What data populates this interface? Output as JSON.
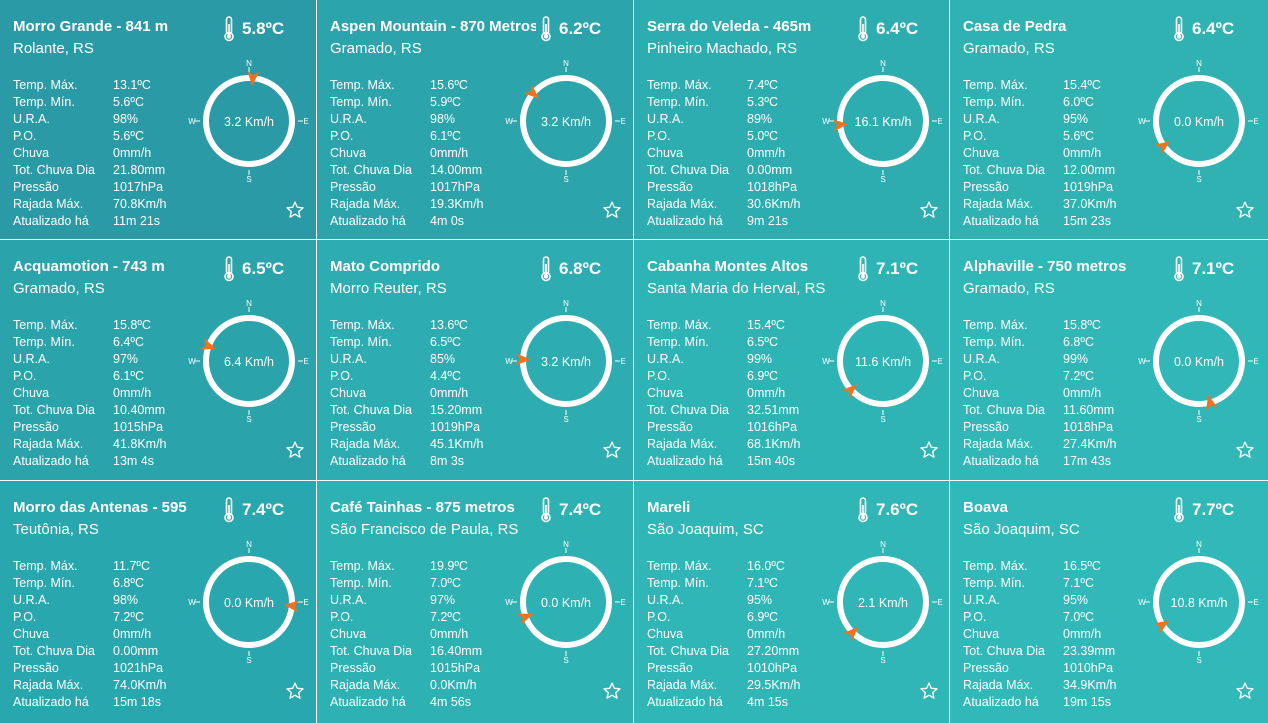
{
  "colors": {
    "gradient_top_row": [
      "#2a9aa6",
      "#2ba4ac",
      "#2eadb1",
      "#30b2b3"
    ],
    "gradient_mid_row": [
      "#2aa3ab",
      "#2dadb1",
      "#2fb4b5",
      "#31b7b7"
    ],
    "gradient_bot_row": [
      "#29a7ae",
      "#2db1b3",
      "#30b6b6",
      "#31b8b8"
    ],
    "arrow": "#f2711c"
  },
  "labels": {
    "temp_max": "Temp. Máx.",
    "temp_min": "Temp. Mín.",
    "ura": "U.R.A.",
    "po": "P.O.",
    "chuva": "Chuva",
    "tot_chuva": "Tot. Chuva Dia",
    "pressao": "Pressão",
    "rajada": "Rajada Máx.",
    "atualizado": "Atualizado há",
    "compass_n": "N",
    "compass_s": "S",
    "compass_e": "E",
    "compass_w": "W"
  },
  "stations": [
    {
      "name": "Morro Grande - 841 m",
      "city": "Rolante, RS",
      "temp": "5.8ºC",
      "temp_max": "13.1ºC",
      "temp_min": "5.6ºC",
      "ura": "98%",
      "po": "5.6ºC",
      "chuva": "0mm/h",
      "tot_chuva": "21.80mm",
      "pressao": "1017hPa",
      "rajada": "70.8Km/h",
      "atualizado": "11m 21s",
      "wind": "3.2 Km/h",
      "wind_deg": 5
    },
    {
      "name": "Aspen Mountain - 870 Metros",
      "city": "Gramado, RS",
      "temp": "6.2ºC",
      "temp_max": "15.6ºC",
      "temp_min": "5.9ºC",
      "ura": "98%",
      "po": "6.1ºC",
      "chuva": "0mm/h",
      "tot_chuva": "14.00mm",
      "pressao": "1017hPa",
      "rajada": "19.3Km/h",
      "atualizado": "4m 0s",
      "wind": "3.2 Km/h",
      "wind_deg": 310
    },
    {
      "name": "Serra do Veleda - 465m",
      "city": "Pinheiro Machado, RS",
      "temp": "6.4ºC",
      "temp_max": "7.4ºC",
      "temp_min": "5.3ºC",
      "ura": "89%",
      "po": "5.0ºC",
      "chuva": "0mm/h",
      "tot_chuva": "0.00mm",
      "pressao": "1018hPa",
      "rajada": "30.6Km/h",
      "atualizado": "9m 21s",
      "wind": "16.1 Km/h",
      "wind_deg": 265
    },
    {
      "name": "Casa de Pedra",
      "city": "Gramado, RS",
      "temp": "6.4ºC",
      "temp_max": "15.4ºC",
      "temp_min": "6.0ºC",
      "ura": "95%",
      "po": "5.6ºC",
      "chuva": "0mm/h",
      "tot_chuva": "12.00mm",
      "pressao": "1019hPa",
      "rajada": "37.0Km/h",
      "atualizado": "15m 23s",
      "wind": "0.0 Km/h",
      "wind_deg": 235
    },
    {
      "name": "Acquamotion - 743 m",
      "city": "Gramado, RS",
      "temp": "6.5ºC",
      "temp_max": "15.8ºC",
      "temp_min": "6.4ºC",
      "ura": "97%",
      "po": "6.1ºC",
      "chuva": "0mm/h",
      "tot_chuva": "10.40mm",
      "pressao": "1015hPa",
      "rajada": "41.8Km/h",
      "atualizado": "13m 4s",
      "wind": "6.4 Km/h",
      "wind_deg": 290
    },
    {
      "name": "Mato Comprido",
      "city": "Morro Reuter, RS",
      "temp": "6.8ºC",
      "temp_max": "13.6ºC",
      "temp_min": "6.5ºC",
      "ura": "85%",
      "po": "4.4ºC",
      "chuva": "0mm/h",
      "tot_chuva": "15.20mm",
      "pressao": "1019hPa",
      "rajada": "45.1Km/h",
      "atualizado": "8m 3s",
      "wind": "3.2 Km/h",
      "wind_deg": 272
    },
    {
      "name": "Cabanha Montes Altos",
      "city": "Santa Maria do Herval, RS",
      "temp": "7.1ºC",
      "temp_max": "15.4ºC",
      "temp_min": "6.5ºC",
      "ura": "99%",
      "po": "6.9ºC",
      "chuva": "0mm/h",
      "tot_chuva": "32.51mm",
      "pressao": "1016hPa",
      "rajada": "68.1Km/h",
      "atualizado": "15m 40s",
      "wind": "11.6 Km/h",
      "wind_deg": 228
    },
    {
      "name": "Alphaville - 750 metros",
      "city": "Gramado, RS",
      "temp": "7.1ºC",
      "temp_max": "15.8ºC",
      "temp_min": "6.8ºC",
      "ura": "99%",
      "po": "7.2ºC",
      "chuva": "0mm/h",
      "tot_chuva": "11.60mm",
      "pressao": "1018hPa",
      "rajada": "27.4Km/h",
      "atualizado": "17m 43s",
      "wind": "0.0 Km/h",
      "wind_deg": 165
    },
    {
      "name": "Morro das Antenas - 595",
      "city": "Teutônia, RS",
      "temp": "7.4ºC",
      "temp_max": "11.7ºC",
      "temp_min": "6.8ºC",
      "ura": "98%",
      "po": "7.2ºC",
      "chuva": "0mm/h",
      "tot_chuva": "0.00mm",
      "pressao": "1021hPa",
      "rajada": "74.0Km/h",
      "atualizado": "15m 18s",
      "wind": "0.0 Km/h",
      "wind_deg": 95
    },
    {
      "name": "Café Tainhas - 875 metros",
      "city": "São Francisco de Paula, RS",
      "temp": "7.4ºC",
      "temp_max": "19.9ºC",
      "temp_min": "7.0ºC",
      "ura": "97%",
      "po": "7.2ºC",
      "chuva": "0mm/h",
      "tot_chuva": "16.40mm",
      "pressao": "1015hPa",
      "rajada": "0.0Km/h",
      "atualizado": "4m 56s",
      "wind": "0.0 Km/h",
      "wind_deg": 250
    },
    {
      "name": "Mareli",
      "city": "São Joaquim, SC",
      "temp": "7.6ºC",
      "temp_max": "16.0ºC",
      "temp_min": "7.1ºC",
      "ura": "95%",
      "po": "6.9ºC",
      "chuva": "0mm/h",
      "tot_chuva": "27.20mm",
      "pressao": "1010hPa",
      "rajada": "29.5Km/h",
      "atualizado": "4m 15s",
      "wind": "2.1 Km/h",
      "wind_deg": 225
    },
    {
      "name": "Boava",
      "city": "São Joaquim, SC",
      "temp": "7.7ºC",
      "temp_max": "16.5ºC",
      "temp_min": "7.1ºC",
      "ura": "95%",
      "po": "7.0ºC",
      "chuva": "0mm/h",
      "tot_chuva": "23.39mm",
      "pressao": "1010hPa",
      "rajada": "34.9Km/h",
      "atualizado": "19m 15s",
      "wind": "10.8 Km/h",
      "wind_deg": 238
    }
  ]
}
